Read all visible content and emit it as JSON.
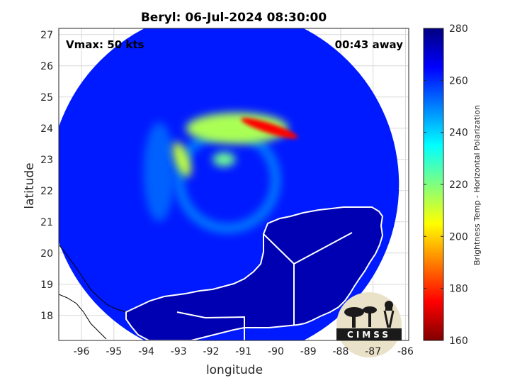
{
  "chart_data": {
    "type": "heatmap",
    "title": "Beryl: 06-Jul-2024 08:30:00",
    "xlabel": "longitude",
    "ylabel": "latitude",
    "xlim": [
      -96.7,
      -85.9
    ],
    "ylim": [
      17.2,
      27.2
    ],
    "xticks": [
      -96,
      -95,
      -94,
      -93,
      -92,
      -91,
      -90,
      -89,
      -88,
      -87,
      -86
    ],
    "yticks": [
      18,
      19,
      20,
      21,
      22,
      23,
      24,
      25,
      26,
      27
    ],
    "grid": true,
    "annotations": {
      "vmax": "Vmax: 50 kts",
      "away": "00:43 away"
    },
    "colorbar": {
      "label": "Brightness Temp - Horizontal Polarization",
      "range": [
        160,
        280
      ],
      "ticks": [
        160,
        180,
        200,
        220,
        240,
        260,
        280
      ],
      "colormap": "jet"
    },
    "swath": {
      "center": [
        -91.6,
        22.2
      ],
      "radius_deg": 5.4,
      "background_temp": 262
    },
    "features": [
      {
        "name": "northern rainband",
        "lon": -91.2,
        "lat": 24.0,
        "temp": 215
      },
      {
        "name": "deep convection core",
        "lon": -90.2,
        "lat": 24.0,
        "temp": 175
      },
      {
        "name": "western arc",
        "lon": -92.9,
        "lat": 23.0,
        "temp": 212
      },
      {
        "name": "inner band",
        "lon": -91.6,
        "lat": 23.0,
        "temp": 222
      },
      {
        "name": "land (Yucatan)",
        "temp": 274
      }
    ],
    "logo": "CIMSS"
  }
}
